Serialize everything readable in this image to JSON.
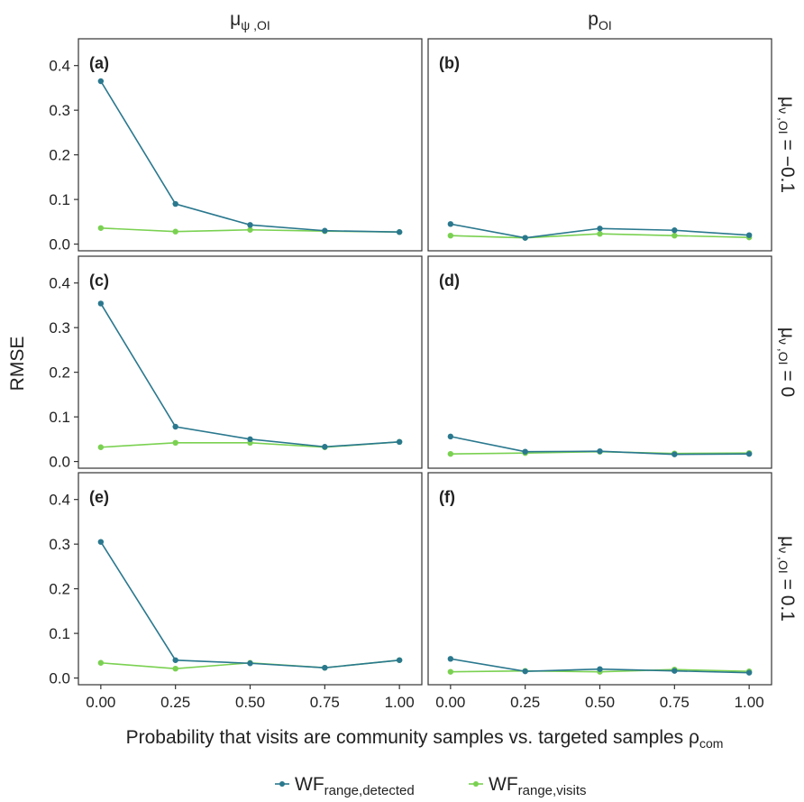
{
  "chart_data": {
    "type": "line",
    "title": "",
    "xlabel": "Probability that visits are community samples vs. targeted samples ρ",
    "xlabel_sub": "com",
    "ylabel": "RMSE",
    "x": [
      0.0,
      0.25,
      0.5,
      0.75,
      1.0
    ],
    "x_tick_labels": [
      "0.00",
      "0.25",
      "0.50",
      "0.75",
      "1.00"
    ],
    "y_ticks": [
      0.0,
      0.1,
      0.2,
      0.3,
      0.4
    ],
    "y_tick_labels": [
      "0.0",
      "0.1",
      "0.2",
      "0.3",
      "0.4"
    ],
    "xlim": [
      -0.075,
      1.075
    ],
    "ylim": [
      -0.015,
      0.46
    ],
    "grid": false,
    "legend_position": "bottom",
    "column_strips": [
      {
        "main": "μ",
        "sub": "ψ ,OI"
      },
      {
        "main": "p",
        "sub": "OI"
      }
    ],
    "row_strips": [
      {
        "main": "μ",
        "sub": "ν ,OI",
        "value": " = −0.1"
      },
      {
        "main": "μ",
        "sub": "ν ,OI",
        "value": " = 0"
      },
      {
        "main": "μ",
        "sub": "ν ,OI",
        "value": " = 0.1"
      }
    ],
    "series_style": [
      {
        "name": "WF",
        "sub": "range,detected",
        "color": "#2a788e"
      },
      {
        "name": "WF",
        "sub": "range,visits",
        "color": "#7ad151"
      }
    ],
    "panels": [
      {
        "label": "(a)",
        "row": 0,
        "col": 0,
        "series": [
          [
            0.365,
            0.09,
            0.043,
            0.03,
            0.027
          ],
          [
            0.036,
            0.028,
            0.032,
            0.029,
            0.027
          ]
        ]
      },
      {
        "label": "(b)",
        "row": 0,
        "col": 1,
        "series": [
          [
            0.045,
            0.014,
            0.035,
            0.031,
            0.02
          ],
          [
            0.019,
            0.014,
            0.023,
            0.019,
            0.015
          ]
        ]
      },
      {
        "label": "(c)",
        "row": 1,
        "col": 0,
        "series": [
          [
            0.354,
            0.078,
            0.05,
            0.033,
            0.044
          ],
          [
            0.032,
            0.042,
            0.042,
            0.032,
            0.044
          ]
        ]
      },
      {
        "label": "(d)",
        "row": 1,
        "col": 1,
        "series": [
          [
            0.056,
            0.022,
            0.023,
            0.016,
            0.017
          ],
          [
            0.017,
            0.019,
            0.022,
            0.018,
            0.019
          ]
        ]
      },
      {
        "label": "(e)",
        "row": 2,
        "col": 0,
        "series": [
          [
            0.305,
            0.04,
            0.033,
            0.023,
            0.04
          ],
          [
            0.034,
            0.021,
            0.034,
            0.023,
            0.04
          ]
        ]
      },
      {
        "label": "(f)",
        "row": 2,
        "col": 1,
        "series": [
          [
            0.043,
            0.015,
            0.02,
            0.016,
            0.012
          ],
          [
            0.014,
            0.016,
            0.014,
            0.019,
            0.015
          ]
        ]
      }
    ]
  }
}
